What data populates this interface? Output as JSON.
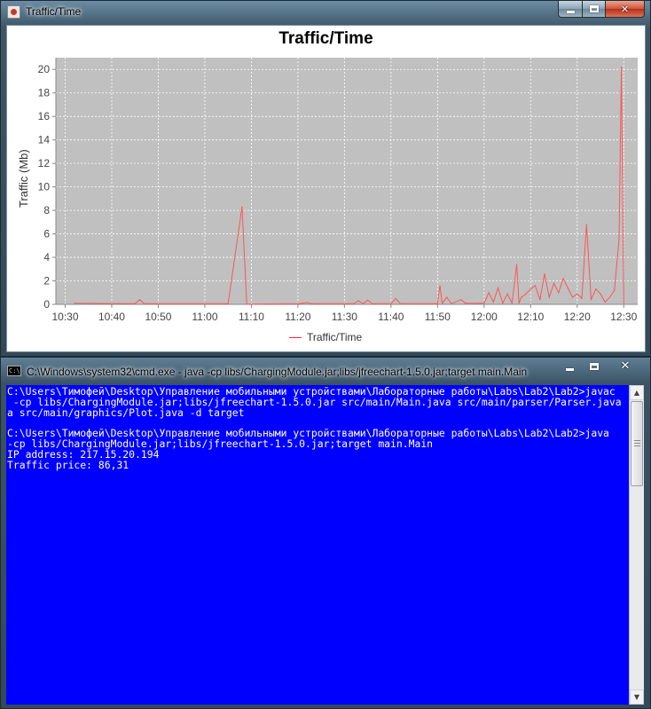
{
  "chart_window": {
    "title": "Traffic/Time",
    "controls": {
      "minimize": "minimize",
      "maximize": "maximize",
      "close": "close"
    }
  },
  "console_window": {
    "title": "C:\\Windows\\system32\\cmd.exe - java  -cp libs/ChargingModule.jar;libs/jfreechart-1.5.0.jar;target main.Main",
    "icon_text": "C:\\",
    "controls": {
      "minimize": "minimize",
      "maximize": "maximize",
      "close": "close"
    },
    "lines": [
      "C:\\Users\\Тимофей\\Desktop\\Управление мобильными устройствами\\Лабораторные работы\\Labs\\Lab2\\Lab2>javac",
      " -cp libs/ChargingModule.jar;libs/jfreechart-1.5.0.jar src/main/Main.java src/main/parser/Parser.java",
      "a src/main/graphics/Plot.java -d target",
      "",
      "C:\\Users\\Тимофей\\Desktop\\Управление мобильными устройствами\\Лабораторные работы\\Labs\\Lab2\\Lab2>java",
      "-cp libs/ChargingModule.jar;libs/jfreechart-1.5.0.jar;target main.Main",
      "IP address: 217.15.20.194",
      "Traffic price: 86,31"
    ]
  },
  "chart_data": {
    "type": "line",
    "title": "Traffic/Time",
    "xlabel": "",
    "ylabel": "Traffic (Mb)",
    "legend": {
      "entries": [
        "Traffic/Time"
      ],
      "placement": "bottom-center"
    },
    "x_ticks": [
      "10:30",
      "10:40",
      "10:50",
      "11:00",
      "11:10",
      "11:20",
      "11:30",
      "11:40",
      "11:50",
      "12:00",
      "12:10",
      "12:20",
      "12:30"
    ],
    "y_ticks": [
      "0",
      "2",
      "4",
      "6",
      "8",
      "10",
      "12",
      "14",
      "16",
      "18",
      "20"
    ],
    "xlim": [
      "10:28",
      "12:33"
    ],
    "ylim": [
      0,
      21
    ],
    "grid": true,
    "background": "#c0c0c0",
    "series_color": "#ff5555",
    "series": [
      {
        "name": "Traffic/Time",
        "points": [
          [
            "10:32",
            0.1
          ],
          [
            "10:45",
            0.05
          ],
          [
            "10:46",
            0.4
          ],
          [
            "10:47",
            0.05
          ],
          [
            "11:05",
            0.05
          ],
          [
            "11:08",
            8.3
          ],
          [
            "11:09",
            0.02
          ],
          [
            "11:20",
            0.05
          ],
          [
            "11:22",
            0.15
          ],
          [
            "11:23",
            0.05
          ],
          [
            "11:32",
            0.05
          ],
          [
            "11:33",
            0.3
          ],
          [
            "11:34",
            0.05
          ],
          [
            "11:35",
            0.35
          ],
          [
            "11:36",
            0.05
          ],
          [
            "11:40",
            0.05
          ],
          [
            "11:41",
            0.5
          ],
          [
            "11:42",
            0.05
          ],
          [
            "11:50",
            0.05
          ],
          [
            "11:50.5",
            1.6
          ],
          [
            "11:51",
            0.1
          ],
          [
            "11:52",
            0.6
          ],
          [
            "11:53",
            0.05
          ],
          [
            "11:55",
            0.4
          ],
          [
            "11:56",
            0.1
          ],
          [
            "11:59",
            0.1
          ],
          [
            "12:00",
            0.1
          ],
          [
            "12:01",
            1.0
          ],
          [
            "12:02",
            0.2
          ],
          [
            "12:03",
            1.4
          ],
          [
            "12:04",
            0.1
          ],
          [
            "12:05",
            0.9
          ],
          [
            "12:06",
            0.1
          ],
          [
            "12:07",
            3.4
          ],
          [
            "12:07.5",
            0.1
          ],
          [
            "12:08",
            0.6
          ],
          [
            "12:09",
            0.9
          ],
          [
            "12:10",
            1.3
          ],
          [
            "12:11",
            1.6
          ],
          [
            "12:12",
            0.4
          ],
          [
            "12:13",
            2.6
          ],
          [
            "12:14",
            0.6
          ],
          [
            "12:15",
            1.8
          ],
          [
            "12:16",
            1.0
          ],
          [
            "12:17",
            2.2
          ],
          [
            "12:18",
            1.4
          ],
          [
            "12:19",
            0.6
          ],
          [
            "12:20",
            0.9
          ],
          [
            "12:21",
            0.5
          ],
          [
            "12:22",
            6.8
          ],
          [
            "12:23",
            0.4
          ],
          [
            "12:24",
            1.3
          ],
          [
            "12:25",
            0.9
          ],
          [
            "12:26",
            0.2
          ],
          [
            "12:27",
            0.6
          ],
          [
            "12:28",
            1.2
          ],
          [
            "12:29",
            5.6
          ],
          [
            "12:29.5",
            20.2
          ],
          [
            "12:30",
            0.1
          ]
        ]
      }
    ]
  }
}
